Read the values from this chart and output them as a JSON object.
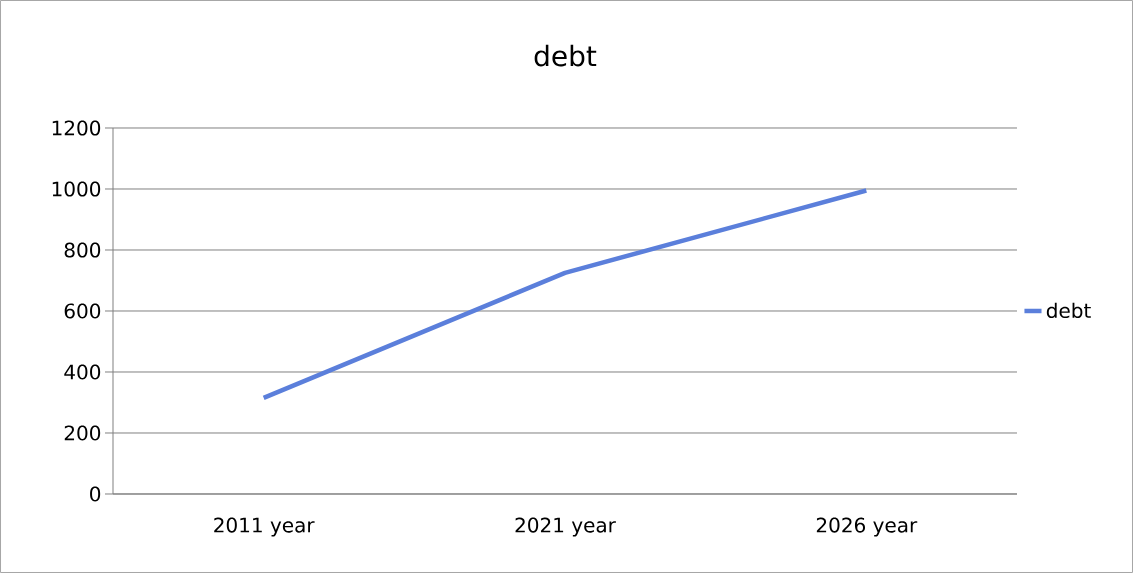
{
  "chart_data": {
    "type": "line",
    "title": "debt",
    "categories": [
      "2011 year",
      "2021 year",
      "2026 year"
    ],
    "series": [
      {
        "name": "debt",
        "color": "#5b7fdb",
        "values": [
          315,
          725,
          995
        ]
      }
    ],
    "ylim": [
      0,
      1200
    ],
    "yticks": [
      0,
      200,
      400,
      600,
      800,
      1000,
      1200
    ],
    "grid": "y",
    "legend": "right"
  }
}
